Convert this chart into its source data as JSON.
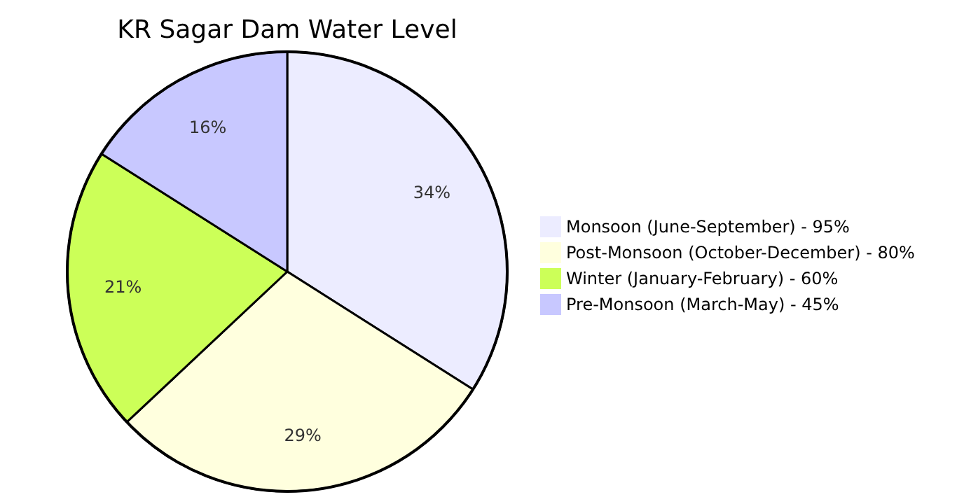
{
  "chart_data": {
    "type": "pie",
    "title": "KR Sagar Dam Water Level",
    "categories": [
      "Monsoon (June-September) - 95%",
      "Post-Monsoon (October-December) - 80%",
      "Winter (January-February) - 60%",
      "Pre-Monsoon (March-May) - 45%"
    ],
    "values": [
      34,
      29,
      21,
      16
    ],
    "value_labels": [
      "34%",
      "29%",
      "21%",
      "16%"
    ],
    "colors": [
      "#ececff",
      "#ffffde",
      "#ccff58",
      "#c8c8ff"
    ],
    "legend": "right"
  }
}
